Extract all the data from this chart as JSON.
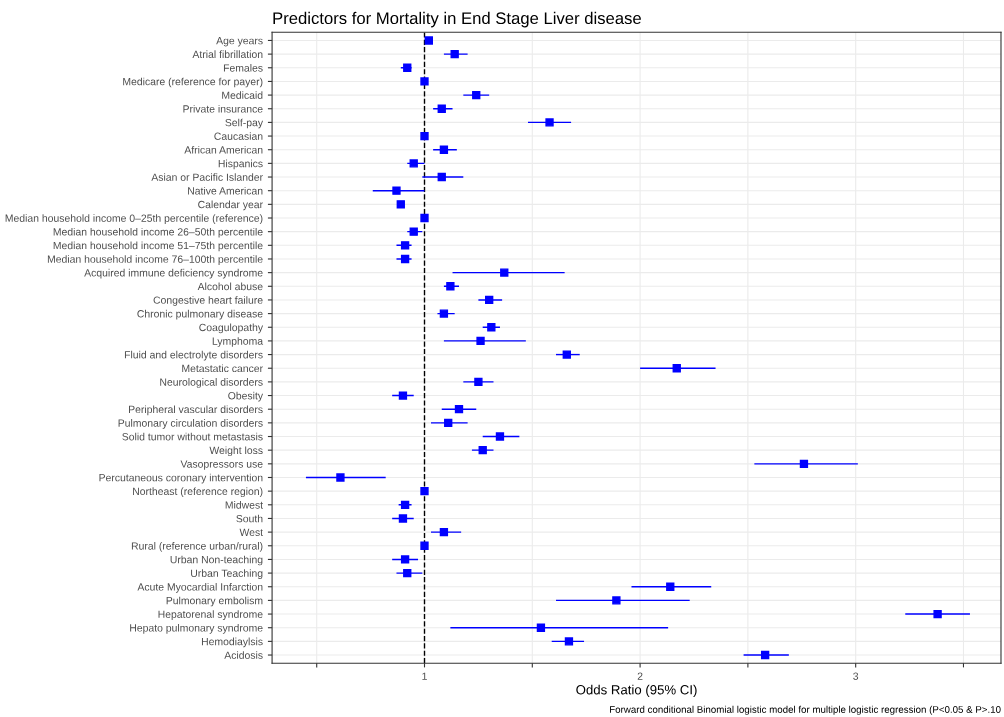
{
  "chart_data": {
    "type": "scatter",
    "orientation": "horizontal",
    "title": "Predictors for Mortality in End Stage Liver disease",
    "xlabel": "Odds Ratio (95% CI)",
    "annotations": [
      "Forward conditional Binomial logistic model for multiple logistic regression (P<0.05 & P>.10"
    ],
    "categories": [
      "Age years",
      "Atrial fibrillation",
      "Females",
      "Medicare (reference for payer)",
      "Medicaid",
      "Private insurance",
      "Self-pay",
      "Caucasian",
      "African American",
      "Hispanics",
      "Asian or Pacific Islander",
      "Native American",
      "Calendar year",
      "Median household income 0–25th percentile (reference)",
      "Median household income 26–50th percentile",
      "Median household income 51–75th percentile",
      "Median household income 76–100th percentile",
      "Acquired immune deficiency syndrome",
      "Alcohol abuse",
      "Congestive heart failure",
      "Chronic pulmonary disease",
      "Coagulopathy",
      "Lymphoma",
      "Fluid and electrolyte disorders",
      "Metastatic cancer",
      "Neurological disorders",
      "Obesity",
      "Peripheral vascular disorders",
      "Pulmonary circulation disorders",
      "Solid tumor without metastasis",
      "Weight loss",
      "Vasopressors use",
      "Percutaneous coronary intervention",
      "Northeast (reference region)",
      "Midwest",
      "South",
      "West",
      "Rural (reference urban/rural)",
      "Urban Non-teaching",
      "Urban Teaching",
      "Acute Myocardial Infarction",
      "Pulmonary embolism",
      "Hepatorenal syndrome",
      "Hepato pulmonary syndrome",
      "Hemodiaylsis",
      "Acidosis"
    ],
    "series": [
      {
        "color": "#0000ff",
        "values": [
          1.02,
          1.14,
          0.92,
          1.0,
          1.24,
          1.08,
          1.58,
          1.0,
          1.09,
          0.95,
          1.08,
          0.87,
          0.89,
          1.0,
          0.95,
          0.91,
          0.91,
          1.37,
          1.12,
          1.3,
          1.09,
          1.31,
          1.26,
          1.66,
          2.17,
          1.25,
          0.9,
          1.16,
          1.11,
          1.35,
          1.27,
          2.76,
          0.61,
          1.0,
          0.91,
          0.9,
          1.09,
          1.0,
          0.91,
          0.92,
          2.14,
          1.89,
          3.38,
          1.54,
          1.67,
          2.58
        ],
        "errors": [
          null,
          [
            1.09,
            1.2
          ],
          [
            0.89,
            0.94
          ],
          null,
          [
            1.18,
            1.3
          ],
          [
            1.04,
            1.13
          ],
          [
            1.48,
            1.68
          ],
          null,
          [
            1.04,
            1.15
          ],
          [
            0.92,
            1.0
          ],
          [
            0.99,
            1.18
          ],
          [
            0.76,
            1.0
          ],
          null,
          null,
          [
            0.92,
            0.99
          ],
          [
            0.87,
            0.94
          ],
          [
            0.87,
            0.94
          ],
          [
            1.13,
            1.65
          ],
          [
            1.09,
            1.16
          ],
          [
            1.25,
            1.36
          ],
          [
            1.06,
            1.14
          ],
          [
            1.27,
            1.35
          ],
          [
            1.09,
            1.47
          ],
          [
            1.61,
            1.72
          ],
          [
            2.0,
            2.35
          ],
          [
            1.18,
            1.32
          ],
          [
            0.85,
            0.95
          ],
          [
            1.08,
            1.24
          ],
          [
            1.03,
            1.2
          ],
          [
            1.27,
            1.44
          ],
          [
            1.22,
            1.32
          ],
          [
            2.53,
            3.01
          ],
          [
            0.45,
            0.82
          ],
          null,
          [
            0.88,
            0.94
          ],
          [
            0.85,
            0.95
          ],
          [
            1.03,
            1.17
          ],
          null,
          [
            0.85,
            0.97
          ],
          [
            0.87,
            0.99
          ],
          [
            1.96,
            2.33
          ],
          [
            1.61,
            2.23
          ],
          [
            3.23,
            3.53
          ],
          [
            1.12,
            2.13
          ],
          [
            1.59,
            1.74
          ],
          [
            2.48,
            2.69
          ]
        ]
      }
    ],
    "xlim": [
      0.293,
      3.674
    ],
    "xticks": [
      {
        "value": 0.5,
        "label": null
      },
      1,
      {
        "value": 1.5,
        "label": null
      },
      2,
      {
        "value": 2.5,
        "label": null
      },
      3,
      {
        "value": 3.5,
        "label": null
      }
    ],
    "ref_lines": [
      {
        "axis": "x",
        "value": 1,
        "color": "#000000",
        "line_style": "dashed"
      }
    ],
    "marker": "square",
    "grid": true,
    "legend": false
  }
}
